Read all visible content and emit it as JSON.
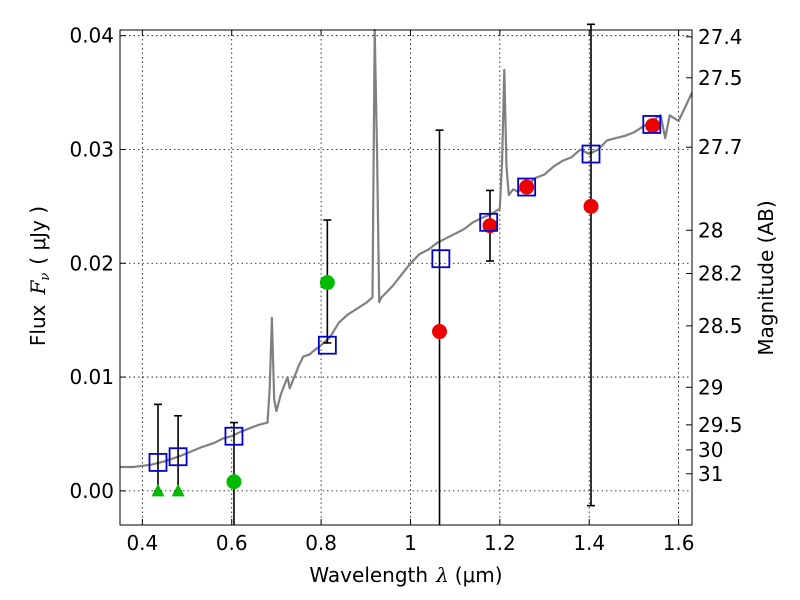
{
  "chart_data": {
    "type": "scatter",
    "xlabel_text": "Wavelength",
    "xlabel_sym": "λ",
    "xlabel_unit": "(μm)",
    "ylabel_text": "Flux",
    "ylabel_sym": "F",
    "ylabel_sub": "ν",
    "ylabel_unit": "( μJy )",
    "y2label": "Magnitude (AB)",
    "xlim": [
      0.35,
      1.63
    ],
    "ylim": [
      -0.003,
      0.0405
    ],
    "x_ticks": [
      0.4,
      0.6,
      0.8,
      1.0,
      1.2,
      1.4,
      1.6
    ],
    "x_tick_labels": [
      "0.4",
      "0.6",
      "0.8",
      "1",
      "1.2",
      "1.4",
      "1.6"
    ],
    "y_ticks": [
      0.0,
      0.01,
      0.02,
      0.03,
      0.04
    ],
    "y_tick_labels": [
      "0.00",
      "0.01",
      "0.02",
      "0.03",
      "0.04"
    ],
    "mag_ticks": [
      {
        "label": "27.4",
        "flux": 0.0399
      },
      {
        "label": "27.5",
        "flux": 0.0363
      },
      {
        "label": "27.7",
        "flux": 0.0302
      },
      {
        "label": "28",
        "flux": 0.0229
      },
      {
        "label": "28.2",
        "flux": 0.0191
      },
      {
        "label": "28.5",
        "flux": 0.0145
      },
      {
        "label": "29",
        "flux": 0.0091
      },
      {
        "label": "29.5",
        "flux": 0.0058
      },
      {
        "label": "30",
        "flux": 0.0036
      },
      {
        "label": "31",
        "flux": 0.0015
      }
    ],
    "colors": {
      "model": "#808080",
      "model_boxes": "#0000cc",
      "red": "#ee0000",
      "green": "#00bb00",
      "errorbar": "#000000"
    },
    "series": [
      {
        "name": "model spectrum",
        "kind": "line",
        "x": [
          0.35,
          0.38,
          0.4,
          0.42,
          0.45,
          0.48,
          0.5,
          0.53,
          0.56,
          0.58,
          0.6,
          0.62,
          0.64,
          0.66,
          0.68,
          0.685,
          0.69,
          0.695,
          0.7,
          0.71,
          0.72,
          0.725,
          0.73,
          0.74,
          0.75,
          0.76,
          0.775,
          0.78,
          0.8,
          0.82,
          0.84,
          0.86,
          0.88,
          0.9,
          0.915,
          0.92,
          0.925,
          0.93,
          0.935,
          0.94,
          0.96,
          0.98,
          1.0,
          1.02,
          1.04,
          1.06,
          1.08,
          1.1,
          1.12,
          1.14,
          1.16,
          1.18,
          1.2,
          1.205,
          1.21,
          1.215,
          1.22,
          1.23,
          1.24,
          1.26,
          1.28,
          1.3,
          1.32,
          1.34,
          1.36,
          1.38,
          1.4,
          1.42,
          1.44,
          1.46,
          1.48,
          1.5,
          1.52,
          1.54,
          1.56,
          1.57,
          1.58,
          1.6,
          1.63
        ],
        "y": [
          0.0021,
          0.0021,
          0.0022,
          0.0023,
          0.0026,
          0.003,
          0.0033,
          0.0038,
          0.0042,
          0.0046,
          0.0048,
          0.0052,
          0.0055,
          0.0058,
          0.006,
          0.009,
          0.0152,
          0.008,
          0.007,
          0.0085,
          0.0095,
          0.01,
          0.009,
          0.01,
          0.011,
          0.0118,
          0.012,
          0.0122,
          0.0128,
          0.0135,
          0.0148,
          0.0155,
          0.016,
          0.0165,
          0.017,
          0.041,
          0.03,
          0.0166,
          0.017,
          0.0172,
          0.018,
          0.019,
          0.02,
          0.0208,
          0.0212,
          0.0218,
          0.0222,
          0.0226,
          0.023,
          0.0236,
          0.024,
          0.0243,
          0.0248,
          0.029,
          0.037,
          0.0285,
          0.026,
          0.0265,
          0.0263,
          0.0268,
          0.0275,
          0.0278,
          0.0285,
          0.029,
          0.0293,
          0.03,
          0.0296,
          0.03,
          0.0308,
          0.031,
          0.0312,
          0.0315,
          0.032,
          0.0325,
          0.033,
          0.031,
          0.033,
          0.0325,
          0.035
        ]
      },
      {
        "name": "model band fluxes",
        "kind": "open-square",
        "x": [
          0.435,
          0.48,
          0.605,
          0.814,
          1.068,
          1.175,
          1.26,
          1.404,
          1.54
        ],
        "y": [
          0.0025,
          0.003,
          0.0048,
          0.0128,
          0.0204,
          0.0236,
          0.0267,
          0.0296,
          0.0322
        ]
      },
      {
        "name": "red points",
        "kind": "filled-circle",
        "x": [
          1.065,
          1.178,
          1.26,
          1.404,
          1.542
        ],
        "y": [
          0.014,
          0.0233,
          0.0267,
          0.025,
          0.0321
        ],
        "yerr_low": [
          0.017,
          0.0031,
          null,
          0.0263,
          null
        ],
        "yerr_high": [
          0.0177,
          0.0031,
          null,
          0.016,
          null
        ]
      },
      {
        "name": "green points",
        "kind": "filled-circle",
        "x": [
          0.605,
          0.814
        ],
        "y": [
          0.0008,
          0.0183
        ],
        "yerr_low": [
          0.0038,
          0.0053
        ],
        "yerr_high": [
          0.0052,
          0.0055
        ]
      },
      {
        "name": "green upper limits",
        "kind": "triangle",
        "x": [
          0.435,
          0.48
        ],
        "y": [
          0.0,
          0.0
        ],
        "yerr_low": [
          0.0,
          0.0
        ],
        "yerr_high": [
          0.0076,
          0.0066
        ]
      }
    ]
  }
}
